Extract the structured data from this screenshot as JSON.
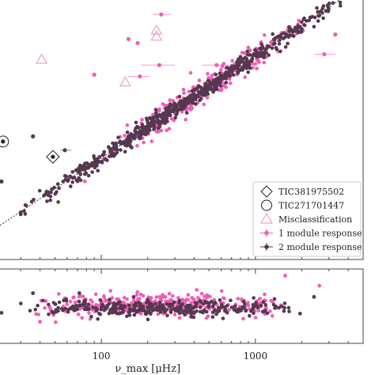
{
  "chart_data": [
    {
      "type": "scatter",
      "panel": "main",
      "x_scale": "log",
      "y_scale": "log",
      "xlim": [
        22,
        5000
      ],
      "ylim": [
        1.5,
        120
      ],
      "xlabel": "",
      "ylabel": "",
      "reference_line": {
        "style": "dotted",
        "color": "#333333",
        "relation": "y proportional to x^0.75"
      },
      "legend": {
        "placement": "lower-right",
        "entries": [
          {
            "label": "TIC381975502",
            "marker": "diamond-open",
            "color": "#222222"
          },
          {
            "label": "TIC271701447",
            "marker": "circle-open",
            "color": "#222222"
          },
          {
            "label": "Misclassification",
            "marker": "triangle-open",
            "color": "#e88fc5"
          },
          {
            "label": "1 module response",
            "marker": "dot-errorbar",
            "color": "#f25cb6"
          },
          {
            "label": "2 module response",
            "marker": "dot-errorbar",
            "color": "#55384f"
          }
        ]
      },
      "series": [
        {
          "name": "2 module response",
          "color": "#55384f",
          "marker": "dot",
          "band": {
            "x_range": [
              30,
              3900
            ],
            "scatter_dex": 0.03,
            "n_points": 650,
            "relation": "y = 0.263 * x^0.75"
          }
        },
        {
          "name": "1 module response",
          "color": "#f25cb6",
          "marker": "dot",
          "band": {
            "x_range": [
              60,
              3000
            ],
            "scatter_dex": 0.05,
            "n_points": 260,
            "relation": "y = 0.263 * x^0.75"
          }
        }
      ],
      "outliers_1_module": [
        {
          "x": 245,
          "y": 94,
          "xerr": [
            215,
            285
          ]
        },
        {
          "x": 150,
          "y": 62
        },
        {
          "x": 172,
          "y": 58
        },
        {
          "x": 238,
          "y": 40,
          "xerr": [
            180,
            300
          ]
        },
        {
          "x": 90,
          "y": 34
        },
        {
          "x": 178,
          "y": 33,
          "xerr": [
            150,
            205
          ]
        },
        {
          "x": 3300,
          "y": 67
        },
        {
          "x": 2800,
          "y": 48,
          "xerr": [
            2400,
            3300
          ]
        },
        {
          "x": 560,
          "y": 40,
          "xerr": [
            450,
            720
          ]
        },
        {
          "x": 380,
          "y": 19
        }
      ],
      "outliers_2_module": [
        {
          "x": 36,
          "y": 12
        },
        {
          "x": 58,
          "y": 9.5,
          "xerr": [
            54,
            64
          ]
        },
        {
          "x": 22.5,
          "y": 5.6
        }
      ],
      "misclassification": [
        {
          "x": 228,
          "y": 72
        },
        {
          "x": 228,
          "y": 65
        },
        {
          "x": 41,
          "y": 44
        },
        {
          "x": 143,
          "y": 30
        }
      ],
      "named_stars": [
        {
          "label": "TIC381975502",
          "marker": "diamond",
          "x": 48.5,
          "y": 8.5
        },
        {
          "label": "TIC271701447",
          "marker": "circle",
          "x": 23,
          "y": 11
        }
      ]
    },
    {
      "type": "scatter",
      "panel": "residual",
      "x_scale": "log",
      "xlim": [
        22,
        5000
      ],
      "ylim": [
        -1.0,
        1.0
      ],
      "xlabel": "ν_max [μHz]",
      "x_ticks": [
        100,
        1000
      ],
      "x_tick_labels": [
        "100",
        "1000"
      ],
      "series": [
        {
          "name": "1 module response",
          "color": "#f25cb6",
          "band": {
            "x_range": [
              35,
              1800
            ],
            "y_center": 0.02,
            "y_spread": 0.3,
            "n_points": 320
          }
        },
        {
          "name": "2 module response",
          "color": "#55384f",
          "band": {
            "x_range": [
              30,
              1800
            ],
            "y_center": -0.05,
            "y_spread": 0.22,
            "n_points": 330
          }
        }
      ],
      "outliers": [
        {
          "x": 1560,
          "y": 0.82,
          "color": "#f25cb6"
        },
        {
          "x": 2600,
          "y": 0.55,
          "color": "#f25cb6"
        },
        {
          "x": 2400,
          "y": 0.25,
          "color": "#55384f"
        },
        {
          "x": 72,
          "y": 0.35,
          "color": "#55384f"
        },
        {
          "x": 36,
          "y": 0.35,
          "color": "#55384f"
        },
        {
          "x": 77,
          "y": 0.1,
          "color": "#55384f"
        },
        {
          "x": 71,
          "y": -0.22,
          "color": "#f25cb6"
        },
        {
          "x": 48,
          "y": -0.15,
          "color": "#55384f"
        },
        {
          "x": 40,
          "y": -0.42,
          "color": "#f25cb6"
        },
        {
          "x": 22.5,
          "y": -0.18,
          "color": "#55384f"
        },
        {
          "x": 1950,
          "y": -0.2,
          "color": "#55384f"
        }
      ]
    }
  ]
}
